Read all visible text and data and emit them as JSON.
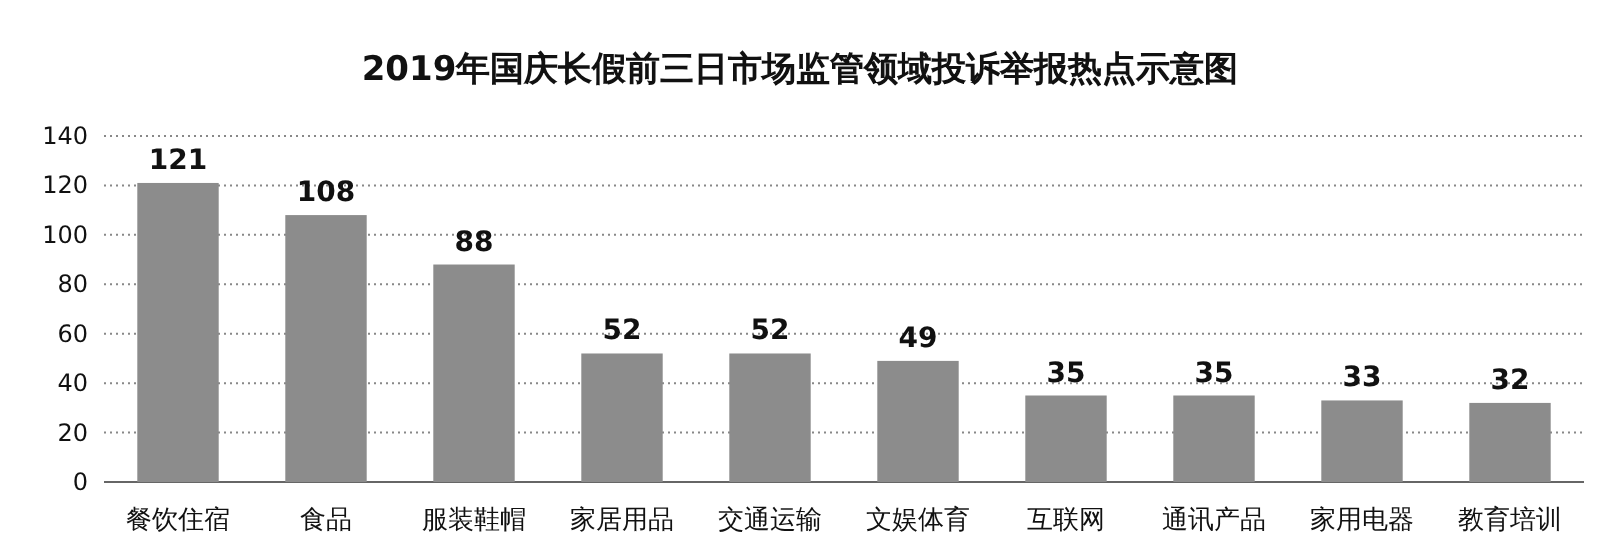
{
  "chart_data": {
    "type": "bar",
    "title": "2019年国庆长假前三日市场监管领域投诉举报热点示意图",
    "categories": [
      "餐饮住宿",
      "食品",
      "服装鞋帽",
      "家居用品",
      "交通运输",
      "文娱体育",
      "互联网",
      "通讯产品",
      "家用电器",
      "教育培训"
    ],
    "values": [
      121,
      108,
      88,
      52,
      52,
      49,
      35,
      35,
      33,
      32
    ],
    "color": "#8c8c8c",
    "ylim": [
      0,
      140
    ],
    "yticks": [
      0,
      20,
      40,
      60,
      80,
      100,
      120,
      140
    ],
    "grid": "y",
    "data_labels": true
  }
}
